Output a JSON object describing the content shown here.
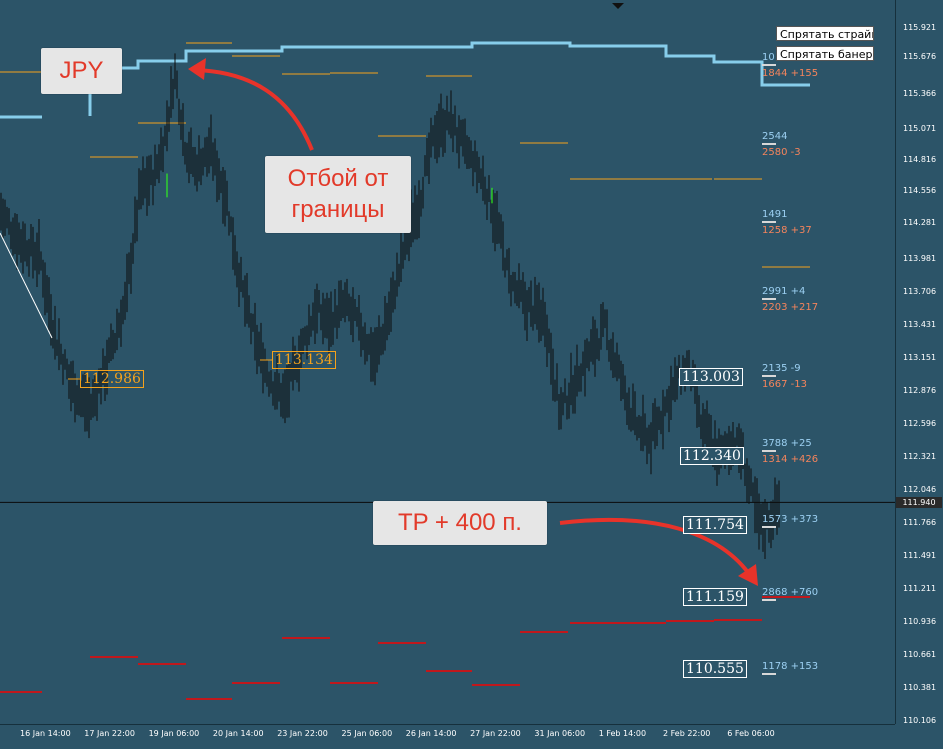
{
  "chart_data": {
    "type": "candlestick",
    "symbol": "JPY",
    "y_ticks": [
      "115.921",
      "115.676",
      "115.366",
      "115.071",
      "114.816",
      "114.556",
      "114.281",
      "113.981",
      "113.706",
      "113.431",
      "113.151",
      "112.876",
      "112.596",
      "112.321",
      "112.046",
      "111.766",
      "111.491",
      "111.211",
      "110.936",
      "110.661",
      "110.381",
      "110.106"
    ],
    "ylim": [
      110.106,
      115.921
    ],
    "x_ticks": [
      "16 Jan 14:00",
      "17 Jan 22:00",
      "19 Jan 06:00",
      "20 Jan 14:00",
      "23 Jan 22:00",
      "25 Jan 06:00",
      "26 Jan 14:00",
      "27 Jan 22:00",
      "31 Jan 06:00",
      "1 Feb 14:00",
      "2 Feb 22:00",
      "6 Feb 06:00"
    ],
    "current_price": "111.940",
    "price_labels": [
      {
        "price": 112.986,
        "text": "112.986",
        "color": "orange"
      },
      {
        "price": 113.134,
        "text": "113.134",
        "color": "orange"
      },
      {
        "price": 113.003,
        "text": "113.003",
        "color": "white"
      },
      {
        "price": 112.34,
        "text": "112.340",
        "color": "white"
      },
      {
        "price": 111.754,
        "text": "111.754",
        "color": "white"
      },
      {
        "price": 111.159,
        "text": "111.159",
        "color": "white"
      },
      {
        "price": 110.555,
        "text": "110.555",
        "color": "white"
      }
    ],
    "strike_labels": [
      {
        "price": 115.6,
        "blue": "10",
        "red": "1844 +155"
      },
      {
        "price": 114.95,
        "blue": "2544",
        "red": "2580 -3"
      },
      {
        "price": 114.27,
        "blue": "1491",
        "red": "1258 +37"
      },
      {
        "price": 113.58,
        "blue": "2991 +4",
        "red": "2203 +217"
      },
      {
        "price": 112.93,
        "blue": "2135 -9",
        "red": "1667 -13"
      },
      {
        "price": 112.33,
        "blue": "3788 +25",
        "red": "1314 +426"
      },
      {
        "price": 111.76,
        "blue": "1573 +373",
        "red": ""
      },
      {
        "price": 111.16,
        "blue": "2868 +760",
        "red": ""
      },
      {
        "price": 110.56,
        "blue": "1178 +153",
        "red": ""
      }
    ],
    "colors": {
      "background": "#2c5468",
      "bar": "#0d0d0d",
      "resistance_line": "#87ceeb",
      "orange_level": "#f4a21c",
      "red_level": "#c0181c"
    }
  },
  "buttons": {
    "hide_strike": "Спрятать страйк",
    "hide_banner": "Спрятать банер"
  },
  "annotations": {
    "symbol": "JPY",
    "bounce": "Отбой от\nграницы",
    "take_profit": "TP + 400 п."
  }
}
